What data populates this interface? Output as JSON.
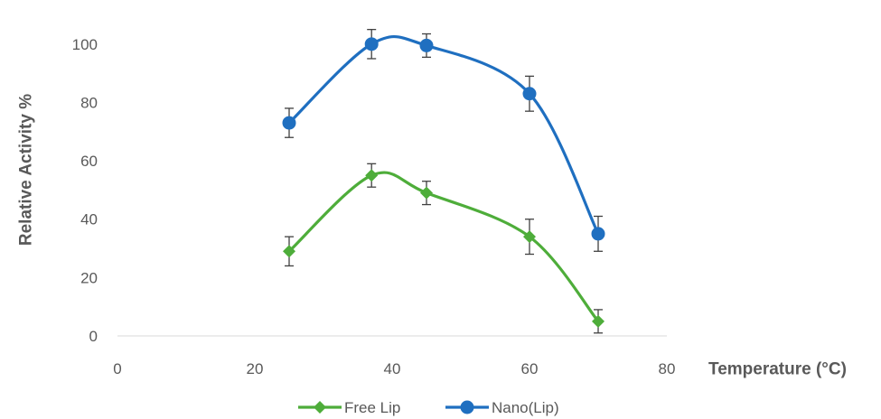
{
  "chart_data": {
    "type": "scatter",
    "title": "",
    "xlabel": "Temperature (°C)",
    "ylabel": "Relative Activity %",
    "xlim": [
      0,
      80
    ],
    "ylim": [
      0,
      110
    ],
    "x_ticks": [
      0,
      20,
      40,
      60,
      80
    ],
    "y_ticks": [
      0,
      20,
      40,
      60,
      80,
      100
    ],
    "grid": false,
    "legend_position": "bottom",
    "smoothed_lines": true,
    "error_bars": true,
    "series": [
      {
        "name": "Free Lip",
        "color": "#4EAD3A",
        "marker": "diamond",
        "x": [
          25,
          37,
          45,
          60,
          70
        ],
        "y": [
          29,
          55,
          49,
          34,
          5
        ],
        "error": [
          5,
          4,
          4,
          6,
          4
        ]
      },
      {
        "name": "Nano(Lip)",
        "color": "#1F6FC0",
        "marker": "circle",
        "x": [
          25,
          37,
          45,
          60,
          70
        ],
        "y": [
          73,
          100,
          99.5,
          83,
          35
        ],
        "error": [
          5,
          5,
          4,
          6,
          6
        ]
      }
    ]
  }
}
